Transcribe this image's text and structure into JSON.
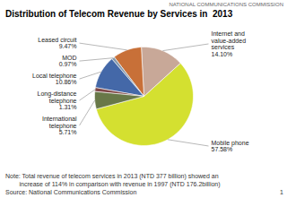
{
  "chart_data": {
    "type": "pie",
    "title": "Distribution of Telecom Revenue by Services in  2013",
    "categories": [
      "Mobile phone",
      "Internet and\nvalue-added\nservices",
      "Leased circuit",
      "MOD",
      "Local telephone",
      "Long-distance\ntelephone",
      "International\ntelephone"
    ],
    "values": [
      57.58,
      14.1,
      9.47,
      0.97,
      10.86,
      1.31,
      5.71
    ],
    "value_labels": [
      "57.58%",
      "14.10%",
      "9.47%",
      "0.97%",
      "10.86%",
      "1.31%",
      "5.71%"
    ],
    "colors": [
      "#d4e030",
      "#c8a898",
      "#c87038",
      "#8899aa",
      "#4468a8",
      "#804848",
      "#687848"
    ],
    "data_labels": true,
    "annotations": [
      "Note: Total revenue of telecom services in 2013 (NTD 377 billion) showed an",
      "        increase of 114% in comparison with revenue in 1997 (NTD 176.2billion)",
      "Source: National Communications Commission",
      "NATIONAL COMMUNICATIONS COMMISSION",
      "1"
    ]
  }
}
